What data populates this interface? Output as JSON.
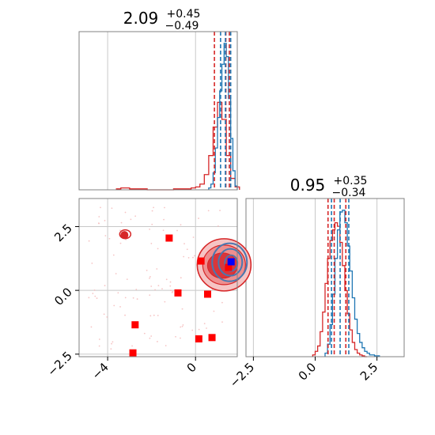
{
  "chart_data": {
    "type": "corner",
    "colors": {
      "primary": "#d62728",
      "secondary": "#1f77b4",
      "marker": "#ff0000",
      "truth": "#0000ff",
      "grid": "#c8c8c8",
      "axis": "#808080"
    },
    "panels": {
      "hist_a": {
        "title": {
          "value": "2.09",
          "sup": "+0.45",
          "sub": "−0.49"
        },
        "xlim": [
          -5.3,
          1.9
        ],
        "grid_x": [
          -4,
          0
        ],
        "hist_red": {
          "bins": [
            -3.6,
            -3.4,
            -3.2,
            -3.0,
            -2.8,
            -2.6,
            -2.4,
            -2.2,
            -2.0,
            -1.8,
            -1.6,
            -1.4,
            -1.2,
            -1.0,
            -0.8,
            -0.6,
            -0.4,
            -0.2,
            0.0,
            0.2,
            0.4,
            0.6,
            0.8,
            1.0,
            1.2,
            1.4,
            1.6,
            1.8
          ],
          "counts": [
            1,
            2,
            2,
            1,
            1,
            1,
            1,
            0,
            0,
            0,
            0,
            0,
            0,
            1,
            1,
            1,
            1,
            2,
            3,
            6,
            16,
            36,
            66,
            92,
            74,
            36,
            12,
            3
          ]
        },
        "hist_blue": {
          "bins": [
            0.6,
            0.7,
            0.8,
            0.9,
            1.0,
            1.1,
            1.2,
            1.3,
            1.4,
            1.5,
            1.6,
            1.7,
            1.8
          ],
          "counts": [
            2,
            6,
            18,
            44,
            76,
            104,
            132,
            154,
            140,
            96,
            54,
            20,
            4
          ]
        },
        "quantiles_red": [
          0.86,
          1.38,
          1.54
        ],
        "quantiles_blue": [
          1.14,
          1.36,
          1.6
        ]
      },
      "hist_b": {
        "title": {
          "value": "0.95",
          "sup": "+0.35",
          "sub": "−0.34"
        },
        "xlim": [
          -2.8,
          3.6
        ],
        "grid_x": [
          -2.5,
          0.0,
          2.5
        ],
        "xticks": [
          -2.5,
          0.0,
          2.5
        ],
        "xtick_labels": [
          "−2.5",
          "0.0",
          "2.5"
        ],
        "hist_red": {
          "bins": [
            -0.1,
            0.0,
            0.1,
            0.2,
            0.3,
            0.4,
            0.5,
            0.6,
            0.7,
            0.8,
            0.9,
            1.0,
            1.1,
            1.2,
            1.3,
            1.4,
            1.5,
            1.6,
            1.7,
            1.8,
            1.9,
            2.0
          ],
          "counts": [
            2,
            6,
            12,
            28,
            50,
            82,
            110,
            130,
            142,
            150,
            146,
            128,
            102,
            74,
            48,
            30,
            16,
            8,
            4,
            2,
            1,
            0
          ]
        },
        "hist_blue": {
          "bins": [
            0.4,
            0.5,
            0.6,
            0.7,
            0.8,
            0.9,
            1.0,
            1.1,
            1.2,
            1.3,
            1.4,
            1.5,
            1.6,
            1.7,
            1.8,
            1.9,
            2.0,
            2.1,
            2.2,
            2.3,
            2.4,
            2.5
          ],
          "counts": [
            4,
            14,
            36,
            70,
            110,
            142,
            162,
            164,
            150,
            124,
            96,
            66,
            42,
            26,
            16,
            10,
            6,
            4,
            2,
            2,
            1,
            1
          ]
        },
        "quantiles_red": [
          0.52,
          0.77,
          1.24
        ],
        "quantiles_blue": [
          0.66,
          1.01,
          1.36
        ]
      },
      "scatter": {
        "xlim": [
          -5.3,
          1.9
        ],
        "ylim": [
          -2.6,
          3.6
        ],
        "xticks": [
          -4,
          0
        ],
        "xtick_labels": [
          "−4",
          "0"
        ],
        "yticks": [
          -2.5,
          0.0,
          2.5
        ],
        "ytick_labels": [
          "−2.5",
          "0.0",
          "2.5"
        ],
        "markers": [
          {
            "x": -1.2,
            "y": 2.05
          },
          {
            "x": 0.25,
            "y": 1.15
          },
          {
            "x": -0.8,
            "y": -0.1
          },
          {
            "x": 0.55,
            "y": -0.15
          },
          {
            "x": -2.75,
            "y": -1.35
          },
          {
            "x": -2.85,
            "y": -2.45
          },
          {
            "x": 0.15,
            "y": -1.9
          },
          {
            "x": 0.75,
            "y": -1.85
          },
          {
            "x": 1.5,
            "y": 0.9
          }
        ],
        "outlier_cluster": {
          "x": -3.2,
          "y": 2.2
        },
        "truth": {
          "x": 1.62,
          "y": 1.12
        },
        "red_center": {
          "x": 1.3,
          "y": 1.0
        },
        "blue_center": {
          "x": 1.55,
          "y": 1.1
        }
      }
    }
  }
}
